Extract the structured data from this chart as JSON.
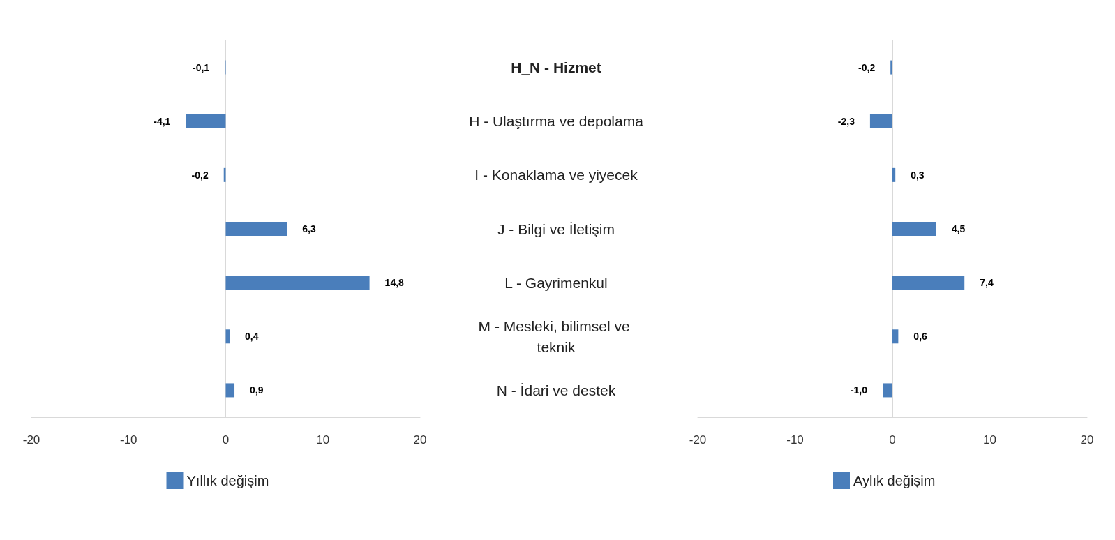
{
  "chart_data": [
    {
      "type": "bar",
      "orientation": "horizontal",
      "categories": [
        "H_N - Hizmet",
        "H - Ulaştırma ve depolama",
        "I - Konaklama ve yiyecek",
        "J - Bilgi ve İletişim",
        "L - Gayrimenkul",
        "M - Mesleki, bilimsel ve teknik",
        "N - İdari ve destek"
      ],
      "series": [
        {
          "name": "Yıllık değişim",
          "color": "#4a7ebb",
          "values": [
            -0.1,
            -4.1,
            -0.2,
            6.3,
            14.8,
            0.4,
            0.9
          ],
          "value_labels": [
            "-0,1",
            "-4,1",
            "-0,2",
            "6,3",
            "14,8",
            "0,4",
            "0,9"
          ]
        }
      ],
      "xlim": [
        -20,
        20
      ],
      "xticks": [
        -20,
        -10,
        0,
        10,
        20
      ],
      "legend": "bottom"
    },
    {
      "type": "bar",
      "orientation": "horizontal",
      "categories": [
        null,
        null,
        null,
        null,
        null,
        null,
        null
      ],
      "series": [
        {
          "name": "Aylık değişim",
          "color": "#4a7ebb",
          "values": [
            -0.2,
            -2.3,
            0.3,
            4.5,
            7.4,
            0.6,
            -1.0
          ],
          "value_labels": [
            "-0,2",
            "-2,3",
            "0,3",
            "4,5",
            "7,4",
            "0,6",
            "-1,0"
          ]
        }
      ],
      "xlim": [
        -20,
        20
      ],
      "xticks": [
        -20,
        -10,
        0,
        10,
        20
      ],
      "legend": "bottom",
      "tick_labels": "x"
    }
  ]
}
